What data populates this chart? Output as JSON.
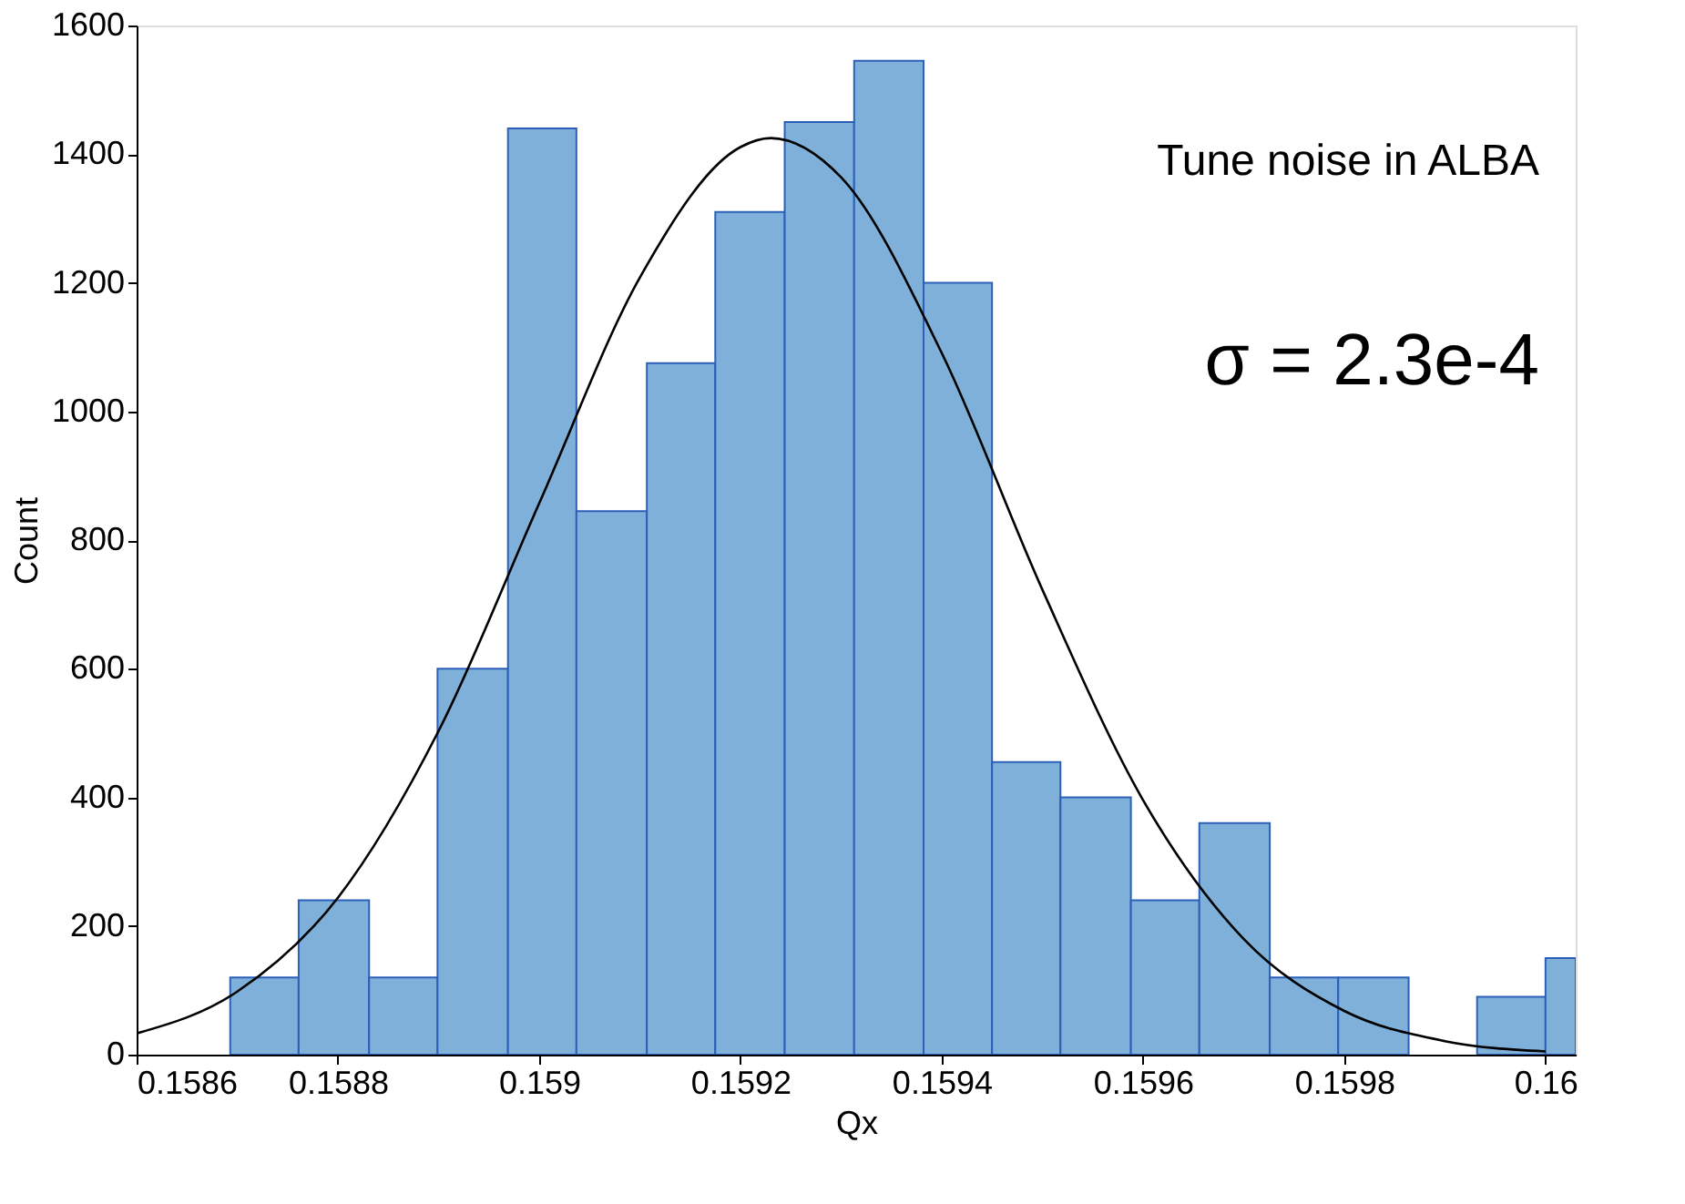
{
  "chart_data": {
    "type": "histogram",
    "xlabel": "Qx",
    "ylabel": "Count",
    "bins": [
      0.158693,
      0.158761,
      0.158831,
      0.158899,
      0.158969,
      0.159037,
      0.159107,
      0.159175,
      0.159244,
      0.159313,
      0.159382,
      0.15945,
      0.159518,
      0.159588,
      0.159656,
      0.159726,
      0.159794,
      0.159864,
      0.159932,
      0.16,
      0.16003
    ],
    "values": [
      120,
      240,
      120,
      600,
      1440,
      845,
      1075,
      1310,
      1450,
      1545,
      1200,
      455,
      400,
      240,
      360,
      120,
      120,
      0,
      90,
      150
    ],
    "color": "#7eb0d9",
    "series": [
      {
        "type": "line",
        "color": "#000000",
        "x": [
          0.1586,
          0.1587,
          0.1588,
          0.1589,
          0.159,
          0.1591,
          0.1592,
          0.15923,
          0.1593,
          0.1594,
          0.1595,
          0.1596,
          0.1597,
          0.1598,
          0.1599,
          0.16
        ],
        "values": [
          33,
          98,
          244,
          503,
          857,
          1208,
          1411,
          1425,
          1364,
          1091,
          723,
          396,
          180,
          68,
          21,
          5
        ]
      }
    ],
    "xlim": [
      0.1586,
      0.16003
    ],
    "ylim": [
      0,
      1600
    ],
    "xticks": [
      0.1586,
      0.1588,
      0.159,
      0.1592,
      0.1594,
      0.1596,
      0.1598,
      0.16
    ],
    "yticks": [
      0,
      200,
      400,
      600,
      800,
      1000,
      1200,
      1400,
      1600
    ],
    "grid": false,
    "annotations": [
      "Tune noise in ALBA",
      "σ = 2.3e-4"
    ]
  }
}
